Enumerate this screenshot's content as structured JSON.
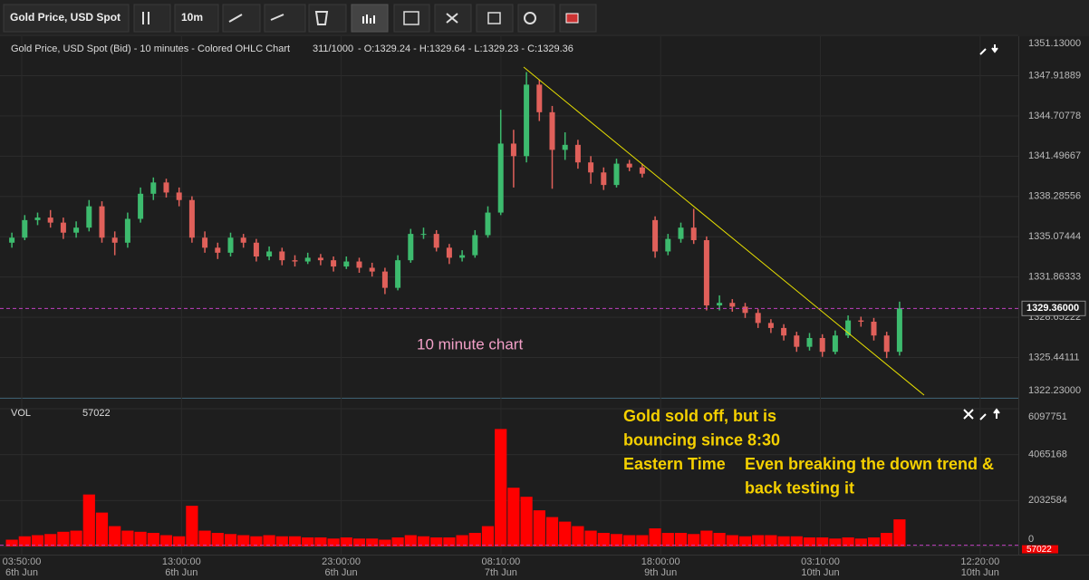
{
  "toolbar": {
    "symbol": "Gold Price, USD Spot",
    "interval": "10m"
  },
  "chart_data": [
    {
      "type": "ohlc",
      "title": "Gold Price, USD Spot (Bid) - 10 minutes - Colored OHLC Chart",
      "bar_count": "311/1000",
      "readout": "- O:1329.24 - H:1329.64 - L:1329.23 - C:1329.36",
      "up_color": "#3dbb6e",
      "down_color": "#e0605a",
      "ylim": [
        1322.23,
        1351.13
      ],
      "yticks": [
        {
          "value": 1322.23,
          "label": "1322.23000"
        },
        {
          "value": 1325.44111,
          "label": "1325.44111"
        },
        {
          "value": 1328.65222,
          "label": "1328.65222"
        },
        {
          "value": 1331.86333,
          "label": "1331.86333"
        },
        {
          "value": 1335.07444,
          "label": "1335.07444"
        },
        {
          "value": 1338.28556,
          "label": "1338.28556"
        },
        {
          "value": 1341.49667,
          "label": "1341.49667"
        },
        {
          "value": 1344.70778,
          "label": "1344.70778"
        },
        {
          "value": 1347.91889,
          "label": "1347.91889"
        },
        {
          "value": 1351.13,
          "label": "1351.13000"
        }
      ],
      "last_price": {
        "value": 1329.36,
        "label": "1329.36000"
      },
      "annotation": "10 minute chart",
      "values": [
        [
          1334.6,
          1335.4,
          1334.2,
          1335.0
        ],
        [
          1335.0,
          1336.8,
          1334.8,
          1336.4
        ],
        [
          1336.4,
          1337.0,
          1336.0,
          1336.6
        ],
        [
          1336.6,
          1337.2,
          1335.8,
          1336.2
        ],
        [
          1336.2,
          1336.6,
          1334.9,
          1335.4
        ],
        [
          1335.4,
          1336.3,
          1335.0,
          1335.8
        ],
        [
          1335.8,
          1338.0,
          1335.5,
          1337.5
        ],
        [
          1337.5,
          1337.9,
          1334.6,
          1335.0
        ],
        [
          1335.0,
          1335.5,
          1333.6,
          1334.6
        ],
        [
          1334.6,
          1337.0,
          1334.2,
          1336.5
        ],
        [
          1336.5,
          1339.0,
          1336.2,
          1338.5
        ],
        [
          1338.5,
          1339.8,
          1338.0,
          1339.4
        ],
        [
          1339.4,
          1339.7,
          1338.2,
          1338.6
        ],
        [
          1338.6,
          1339.0,
          1337.5,
          1338.0
        ],
        [
          1338.0,
          1338.3,
          1334.6,
          1335.0
        ],
        [
          1335.0,
          1335.5,
          1333.8,
          1334.2
        ],
        [
          1334.2,
          1334.6,
          1333.3,
          1333.8
        ],
        [
          1333.8,
          1335.4,
          1333.5,
          1335.0
        ],
        [
          1335.0,
          1335.3,
          1334.2,
          1334.6
        ],
        [
          1334.6,
          1334.9,
          1333.1,
          1333.5
        ],
        [
          1333.5,
          1334.3,
          1333.2,
          1333.9
        ],
        [
          1333.9,
          1334.2,
          1332.8,
          1333.2
        ],
        [
          1333.2,
          1333.6,
          1332.7,
          1333.1
        ],
        [
          1333.1,
          1333.8,
          1332.9,
          1333.4
        ],
        [
          1333.4,
          1333.7,
          1332.8,
          1333.2
        ],
        [
          1333.2,
          1333.5,
          1332.3,
          1332.7
        ],
        [
          1332.7,
          1333.5,
          1332.5,
          1333.1
        ],
        [
          1333.1,
          1333.4,
          1332.2,
          1332.6
        ],
        [
          1332.6,
          1333.0,
          1331.9,
          1332.3
        ],
        [
          1332.3,
          1332.6,
          1330.5,
          1331.0
        ],
        [
          1331.0,
          1333.6,
          1330.8,
          1333.2
        ],
        [
          1333.2,
          1335.7,
          1333.0,
          1335.3
        ],
        [
          1335.3,
          1335.8,
          1334.9,
          1335.3
        ],
        [
          1335.3,
          1335.6,
          1333.9,
          1334.2
        ],
        [
          1334.2,
          1334.5,
          1332.9,
          1333.4
        ],
        [
          1333.4,
          1334.0,
          1333.1,
          1333.6
        ],
        [
          1333.6,
          1335.6,
          1333.4,
          1335.2
        ],
        [
          1335.2,
          1337.5,
          1335.0,
          1337.0
        ],
        [
          1337.0,
          1345.2,
          1336.8,
          1342.5
        ],
        [
          1342.5,
          1343.6,
          1339.0,
          1341.5
        ],
        [
          1341.5,
          1348.2,
          1341.0,
          1347.2
        ],
        [
          1347.2,
          1347.6,
          1344.3,
          1345.0
        ],
        [
          1345.0,
          1345.5,
          1338.9,
          1342.0
        ],
        [
          1342.0,
          1343.4,
          1341.2,
          1342.4
        ],
        [
          1342.4,
          1342.8,
          1340.5,
          1341.0
        ],
        [
          1341.0,
          1341.5,
          1339.3,
          1340.2
        ],
        [
          1340.2,
          1340.6,
          1338.8,
          1339.2
        ],
        [
          1339.2,
          1341.3,
          1339.0,
          1340.9
        ],
        [
          1340.9,
          1341.2,
          1340.3,
          1340.6
        ],
        [
          1340.6,
          1340.9,
          1339.8,
          1340.1
        ],
        [
          1336.4,
          1336.7,
          1333.4,
          1333.9
        ],
        [
          1333.9,
          1335.3,
          1333.6,
          1334.9
        ],
        [
          1334.9,
          1336.2,
          1334.6,
          1335.8
        ],
        [
          1335.8,
          1337.3,
          1334.5,
          1334.8
        ],
        [
          1334.8,
          1335.1,
          1329.2,
          1329.6
        ],
        [
          1329.6,
          1330.4,
          1329.2,
          1329.8
        ],
        [
          1329.8,
          1330.1,
          1329.1,
          1329.5
        ],
        [
          1329.5,
          1329.8,
          1328.6,
          1329.0
        ],
        [
          1329.0,
          1329.3,
          1327.8,
          1328.2
        ],
        [
          1328.2,
          1328.5,
          1327.4,
          1327.8
        ],
        [
          1327.8,
          1328.1,
          1326.8,
          1327.2
        ],
        [
          1327.2,
          1327.5,
          1325.9,
          1326.3
        ],
        [
          1326.3,
          1327.4,
          1326.0,
          1327.0
        ],
        [
          1327.0,
          1327.3,
          1325.5,
          1325.9
        ],
        [
          1325.9,
          1327.6,
          1325.7,
          1327.2
        ],
        [
          1327.2,
          1328.8,
          1327.0,
          1328.4
        ],
        [
          1328.4,
          1328.7,
          1327.9,
          1328.3
        ],
        [
          1328.3,
          1328.6,
          1326.8,
          1327.2
        ],
        [
          1327.2,
          1327.5,
          1325.4,
          1325.9
        ],
        [
          1325.9,
          1329.9,
          1325.6,
          1329.36
        ]
      ]
    },
    {
      "type": "bar",
      "title": "VOL",
      "last_value": 57022,
      "color": "#ff0000",
      "ylim": [
        0,
        6097751
      ],
      "yticks": [
        0,
        2032584,
        4065168,
        6097751
      ],
      "values": [
        300000,
        450000,
        500000,
        550000,
        650000,
        700000,
        2300000,
        1500000,
        900000,
        700000,
        650000,
        600000,
        500000,
        450000,
        1800000,
        700000,
        600000,
        550000,
        500000,
        450000,
        500000,
        450000,
        450000,
        400000,
        400000,
        350000,
        400000,
        350000,
        350000,
        300000,
        400000,
        500000,
        450000,
        400000,
        400000,
        500000,
        600000,
        900000,
        5200000,
        2600000,
        2200000,
        1600000,
        1300000,
        1100000,
        900000,
        700000,
        600000,
        550000,
        500000,
        500000,
        800000,
        600000,
        600000,
        550000,
        700000,
        600000,
        500000,
        450000,
        500000,
        500000,
        450000,
        450000,
        400000,
        400000,
        350000,
        400000,
        350000,
        400000,
        600000,
        1200000
      ],
      "x_labels": [
        {
          "time": "03:50:00",
          "date": "6th Jun"
        },
        {
          "time": "13:00:00",
          "date": "6th Jun"
        },
        {
          "time": "23:00:00",
          "date": "6th Jun"
        },
        {
          "time": "08:10:00",
          "date": "7th Jun"
        },
        {
          "time": "18:00:00",
          "date": "9th Jun"
        },
        {
          "time": "03:10:00",
          "date": "10th Jun"
        },
        {
          "time": "12:20:00",
          "date": "10th Jun"
        }
      ]
    }
  ],
  "notes": [
    [
      "Gold sold off, but is",
      "bouncing since 8:30",
      "Eastern Time"
    ],
    [
      "Even breaking the down trend &",
      "back testing it"
    ]
  ]
}
